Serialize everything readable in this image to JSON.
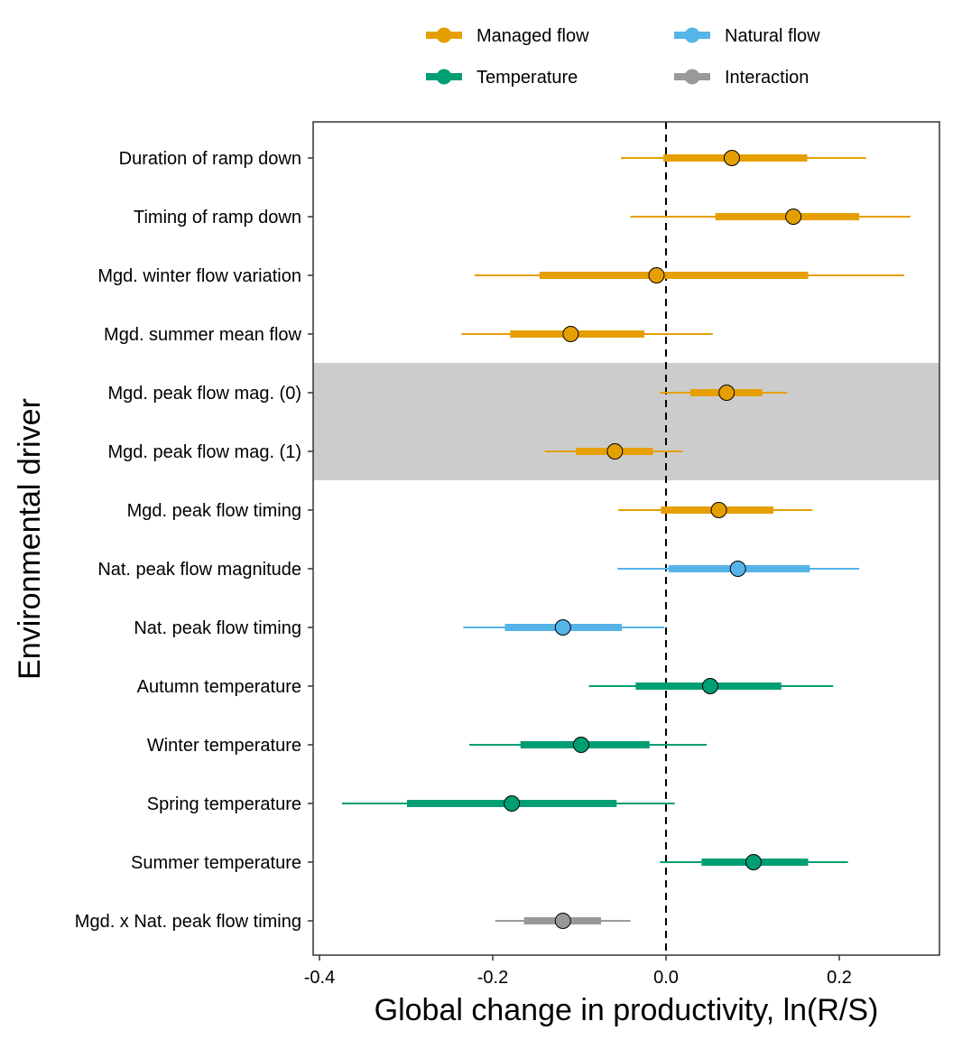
{
  "chart_data": {
    "type": "forest",
    "title": "",
    "xlabel": "Global change in productivity, ln(R/S)",
    "ylabel": "Environmental driver",
    "xlim": [
      -0.41,
      0.315
    ],
    "xticks": [
      -0.4,
      -0.2,
      0.0,
      0.2
    ],
    "xtick_labels": [
      "-0.4",
      "-0.2",
      "0.0",
      "0.2"
    ],
    "reference_line": 0.0,
    "grid": false,
    "legend": {
      "placement": "top",
      "entries": [
        {
          "name": "Managed flow",
          "color": "#E69F00"
        },
        {
          "name": "Natural flow",
          "color": "#56B4E9"
        },
        {
          "name": "Temperature",
          "color": "#009E73"
        },
        {
          "name": "Interaction",
          "color": "#999999"
        }
      ]
    },
    "highlight_band": {
      "rows": [
        "Mgd. peak flow mag. (0)",
        "Mgd. peak flow mag. (1)"
      ],
      "color": "#CCCCCC"
    },
    "rows": [
      {
        "label": "Duration of ramp down",
        "group": "Managed flow",
        "estimate": 0.076,
        "inner": [
          -0.003,
          0.163
        ],
        "outer": [
          -0.052,
          0.231
        ]
      },
      {
        "label": "Timing of ramp down",
        "group": "Managed flow",
        "estimate": 0.147,
        "inner": [
          0.057,
          0.223
        ],
        "outer": [
          -0.041,
          0.282
        ]
      },
      {
        "label": "Mgd. winter flow variation",
        "group": "Managed flow",
        "estimate": -0.011,
        "inner": [
          -0.146,
          0.164
        ],
        "outer": [
          -0.221,
          0.275
        ]
      },
      {
        "label": "Mgd. summer mean flow",
        "group": "Managed flow",
        "estimate": -0.11,
        "inner": [
          -0.18,
          -0.025
        ],
        "outer": [
          -0.236,
          0.054
        ]
      },
      {
        "label": "Mgd. peak flow mag. (0)",
        "group": "Managed flow",
        "estimate": 0.07,
        "inner": [
          0.028,
          0.111
        ],
        "outer": [
          -0.007,
          0.14
        ]
      },
      {
        "label": "Mgd. peak flow mag. (1)",
        "group": "Managed flow",
        "estimate": -0.059,
        "inner": [
          -0.104,
          -0.015
        ],
        "outer": [
          -0.14,
          0.019
        ]
      },
      {
        "label": "Mgd. peak flow timing",
        "group": "Managed flow",
        "estimate": 0.061,
        "inner": [
          -0.006,
          0.124
        ],
        "outer": [
          -0.055,
          0.169
        ]
      },
      {
        "label": "Nat. peak flow magnitude",
        "group": "Natural flow",
        "estimate": 0.083,
        "inner": [
          0.003,
          0.166
        ],
        "outer": [
          -0.056,
          0.223
        ]
      },
      {
        "label": "Nat. peak flow timing",
        "group": "Natural flow",
        "estimate": -0.119,
        "inner": [
          -0.186,
          -0.051
        ],
        "outer": [
          -0.234,
          -0.002
        ]
      },
      {
        "label": "Autumn temperature",
        "group": "Temperature",
        "estimate": 0.051,
        "inner": [
          -0.035,
          0.133
        ],
        "outer": [
          -0.089,
          0.193
        ]
      },
      {
        "label": "Winter temperature",
        "group": "Temperature",
        "estimate": -0.098,
        "inner": [
          -0.168,
          -0.019
        ],
        "outer": [
          -0.227,
          0.047
        ]
      },
      {
        "label": "Spring temperature",
        "group": "Temperature",
        "estimate": -0.178,
        "inner": [
          -0.299,
          -0.057
        ],
        "outer": [
          -0.374,
          0.01
        ]
      },
      {
        "label": "Summer temperature",
        "group": "Temperature",
        "estimate": 0.101,
        "inner": [
          0.041,
          0.164
        ],
        "outer": [
          -0.007,
          0.21
        ]
      },
      {
        "label": "Mgd. x Nat. peak flow timing",
        "group": "Interaction",
        "estimate": -0.119,
        "inner": [
          -0.164,
          -0.075
        ],
        "outer": [
          -0.197,
          -0.041
        ]
      }
    ]
  }
}
